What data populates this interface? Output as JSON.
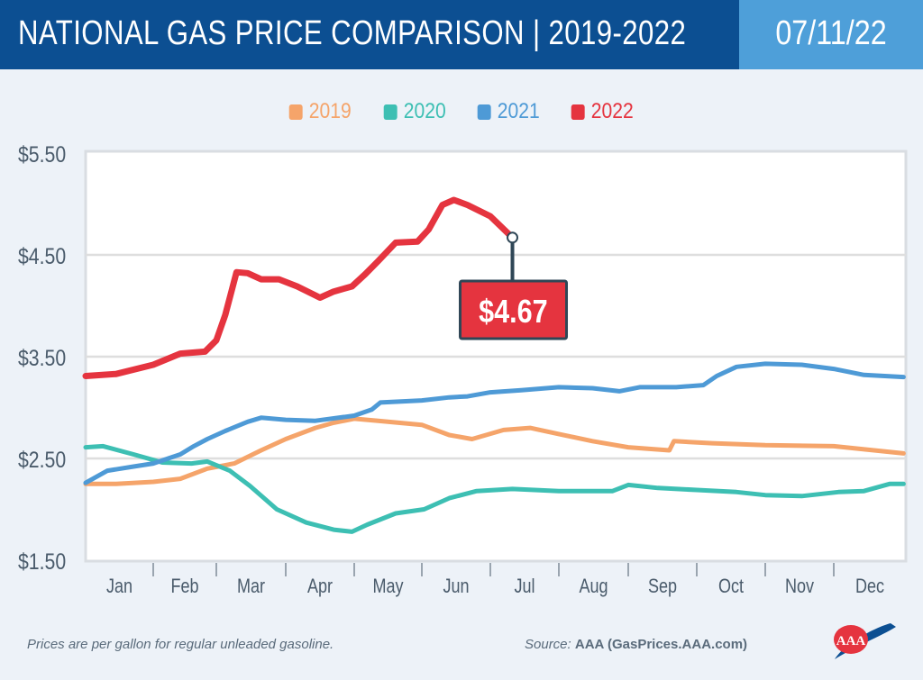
{
  "header": {
    "title": "NATIONAL GAS PRICE COMPARISON | 2019-2022",
    "date": "07/11/22"
  },
  "footer": {
    "note": "Prices are per gallon for regular unleaded gasoline.",
    "source_label": "Source:",
    "source_value": "AAA (GasPrices.AAA.com)",
    "logo_text": "AAA"
  },
  "colors": {
    "header_bg": "#0c4f92",
    "date_bg": "#4e9fd9",
    "2019": "#f5a46a",
    "2020": "#3dbfb3",
    "2021": "#4e9ad6",
    "2022": "#e5343f"
  },
  "chart_data": {
    "type": "line",
    "title": "",
    "xlabel": "",
    "ylabel": "",
    "ylim": [
      1.5,
      5.5
    ],
    "y_ticks": [
      "$1.50",
      "$2.50",
      "$3.50",
      "$4.50",
      "$5.50"
    ],
    "y_tick_values": [
      1.5,
      2.5,
      3.5,
      4.5,
      5.5
    ],
    "x_ticks": [
      "Jan",
      "Feb",
      "Mar",
      "Apr",
      "May",
      "Jun",
      "Jul",
      "Aug",
      "Sep",
      "Oct",
      "Nov",
      "Dec"
    ],
    "grid": "horizontal",
    "legend": "top-center",
    "callout": {
      "series": "2022",
      "date": "07-11",
      "value": 4.67,
      "label": "$4.67"
    },
    "series": [
      {
        "name": "2019",
        "points": [
          [
            "01-01",
            2.25
          ],
          [
            "01-15",
            2.25
          ],
          [
            "02-01",
            2.27
          ],
          [
            "02-13",
            2.3
          ],
          [
            "02-25",
            2.4
          ],
          [
            "03-09",
            2.45
          ],
          [
            "03-21",
            2.58
          ],
          [
            "04-01",
            2.69
          ],
          [
            "04-14",
            2.8
          ],
          [
            "04-22",
            2.85
          ],
          [
            "05-01",
            2.89
          ],
          [
            "05-12",
            2.87
          ],
          [
            "06-01",
            2.83
          ],
          [
            "06-13",
            2.73
          ],
          [
            "06-23",
            2.69
          ],
          [
            "07-07",
            2.78
          ],
          [
            "07-19",
            2.8
          ],
          [
            "08-01",
            2.74
          ],
          [
            "08-16",
            2.67
          ],
          [
            "09-01",
            2.61
          ],
          [
            "09-19",
            2.58
          ],
          [
            "09-21",
            2.67
          ],
          [
            "10-08",
            2.65
          ],
          [
            "11-01",
            2.63
          ],
          [
            "12-01",
            2.62
          ],
          [
            "12-31",
            2.55
          ]
        ]
      },
      {
        "name": "2020",
        "points": [
          [
            "01-01",
            2.61
          ],
          [
            "01-09",
            2.62
          ],
          [
            "01-23",
            2.54
          ],
          [
            "02-05",
            2.46
          ],
          [
            "02-18",
            2.45
          ],
          [
            "02-25",
            2.47
          ],
          [
            "03-07",
            2.38
          ],
          [
            "03-16",
            2.23
          ],
          [
            "03-28",
            2.0
          ],
          [
            "04-10",
            1.87
          ],
          [
            "04-22",
            1.8
          ],
          [
            "04-30",
            1.78
          ],
          [
            "05-07",
            1.85
          ],
          [
            "05-20",
            1.96
          ],
          [
            "06-02",
            2.0
          ],
          [
            "06-13",
            2.11
          ],
          [
            "06-25",
            2.18
          ],
          [
            "07-11",
            2.2
          ],
          [
            "08-01",
            2.18
          ],
          [
            "08-25",
            2.18
          ],
          [
            "09-01",
            2.24
          ],
          [
            "09-14",
            2.21
          ],
          [
            "10-01",
            2.19
          ],
          [
            "10-19",
            2.17
          ],
          [
            "11-01",
            2.14
          ],
          [
            "11-17",
            2.13
          ],
          [
            "12-03",
            2.17
          ],
          [
            "12-14",
            2.18
          ],
          [
            "12-25",
            2.25
          ],
          [
            "12-31",
            2.25
          ]
        ]
      },
      {
        "name": "2021",
        "points": [
          [
            "01-01",
            2.26
          ],
          [
            "01-11",
            2.38
          ],
          [
            "01-23",
            2.42
          ],
          [
            "02-01",
            2.45
          ],
          [
            "02-13",
            2.54
          ],
          [
            "02-19",
            2.62
          ],
          [
            "02-25",
            2.69
          ],
          [
            "03-05",
            2.77
          ],
          [
            "03-15",
            2.86
          ],
          [
            "03-21",
            2.9
          ],
          [
            "04-01",
            2.88
          ],
          [
            "04-14",
            2.87
          ],
          [
            "05-01",
            2.92
          ],
          [
            "05-09",
            2.98
          ],
          [
            "05-13",
            3.05
          ],
          [
            "06-01",
            3.07
          ],
          [
            "06-13",
            3.1
          ],
          [
            "06-21",
            3.11
          ],
          [
            "07-01",
            3.15
          ],
          [
            "07-15",
            3.17
          ],
          [
            "08-01",
            3.2
          ],
          [
            "08-16",
            3.19
          ],
          [
            "08-28",
            3.16
          ],
          [
            "09-06",
            3.2
          ],
          [
            "09-22",
            3.2
          ],
          [
            "10-04",
            3.22
          ],
          [
            "10-10",
            3.31
          ],
          [
            "10-19",
            3.4
          ],
          [
            "11-01",
            3.43
          ],
          [
            "11-17",
            3.42
          ],
          [
            "12-01",
            3.38
          ],
          [
            "12-14",
            3.32
          ],
          [
            "12-31",
            3.3
          ]
        ]
      },
      {
        "name": "2022",
        "points": [
          [
            "01-01",
            3.31
          ],
          [
            "01-15",
            3.33
          ],
          [
            "02-01",
            3.42
          ],
          [
            "02-13",
            3.53
          ],
          [
            "02-24",
            3.55
          ],
          [
            "03-01",
            3.66
          ],
          [
            "03-05",
            3.91
          ],
          [
            "03-10",
            4.33
          ],
          [
            "03-15",
            4.32
          ],
          [
            "03-21",
            4.26
          ],
          [
            "03-29",
            4.26
          ],
          [
            "04-06",
            4.19
          ],
          [
            "04-16",
            4.08
          ],
          [
            "04-22",
            4.14
          ],
          [
            "04-30",
            4.19
          ],
          [
            "05-06",
            4.31
          ],
          [
            "05-12",
            4.44
          ],
          [
            "05-20",
            4.62
          ],
          [
            "05-30",
            4.63
          ],
          [
            "06-04",
            4.75
          ],
          [
            "06-10",
            4.99
          ],
          [
            "06-15",
            5.04
          ],
          [
            "06-21",
            4.99
          ],
          [
            "07-01",
            4.88
          ],
          [
            "07-11",
            4.67
          ]
        ]
      }
    ]
  }
}
